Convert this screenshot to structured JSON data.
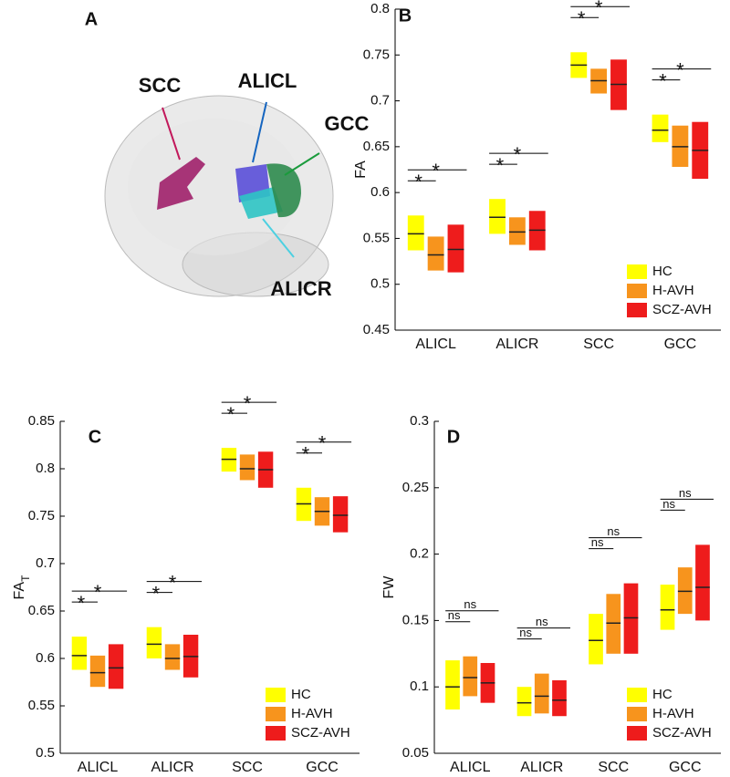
{
  "brain_panel": {
    "letter": "A",
    "labels": [
      "SCC",
      "ALICL",
      "GCC",
      "ALICR"
    ]
  },
  "chart_data": [
    {
      "type": "box",
      "panel_label": "B",
      "y_label": "FA",
      "categories": [
        "ALICL",
        "ALICR",
        "SCC",
        "GCC"
      ],
      "ylim": [
        0.45,
        0.8
      ],
      "yticks": [
        0.45,
        0.5,
        0.55,
        0.6,
        0.65,
        0.7,
        0.75,
        0.8
      ],
      "legend": "lower right",
      "series": [
        {
          "name": "HC",
          "color": "#ffff00",
          "values": [
            0.555,
            0.573,
            0.739,
            0.668
          ],
          "lower": [
            0.537,
            0.555,
            0.725,
            0.655
          ],
          "upper": [
            0.575,
            0.593,
            0.753,
            0.685
          ]
        },
        {
          "name": "H-AVH",
          "color": "#f7941d",
          "values": [
            0.532,
            0.557,
            0.722,
            0.65
          ],
          "lower": [
            0.515,
            0.543,
            0.708,
            0.628
          ],
          "upper": [
            0.552,
            0.573,
            0.735,
            0.673
          ]
        },
        {
          "name": "SCZ-AVH",
          "color": "#ee1c1c",
          "values": [
            0.538,
            0.559,
            0.718,
            0.646
          ],
          "lower": [
            0.513,
            0.537,
            0.69,
            0.615
          ],
          "upper": [
            0.565,
            0.58,
            0.745,
            0.677
          ]
        }
      ],
      "significance": [
        [
          "*",
          "*"
        ],
        [
          "*",
          "*"
        ],
        [
          "*",
          "*"
        ],
        [
          "*",
          "*"
        ]
      ]
    },
    {
      "type": "box",
      "panel_label": "C",
      "y_label": "FA",
      "y_label_sub": "T",
      "categories": [
        "ALICL",
        "ALICR",
        "SCC",
        "GCC"
      ],
      "ylim": [
        0.5,
        0.85
      ],
      "yticks": [
        0.5,
        0.55,
        0.6,
        0.65,
        0.7,
        0.75,
        0.8,
        0.85
      ],
      "legend": "lower right",
      "series": [
        {
          "name": "HC",
          "color": "#ffff00",
          "values": [
            0.603,
            0.615,
            0.81,
            0.763
          ],
          "lower": [
            0.588,
            0.6,
            0.797,
            0.745
          ],
          "upper": [
            0.623,
            0.633,
            0.822,
            0.78
          ]
        },
        {
          "name": "H-AVH",
          "color": "#f7941d",
          "values": [
            0.585,
            0.6,
            0.8,
            0.755
          ],
          "lower": [
            0.57,
            0.588,
            0.788,
            0.74
          ],
          "upper": [
            0.603,
            0.615,
            0.815,
            0.77
          ]
        },
        {
          "name": "SCZ-AVH",
          "color": "#ee1c1c",
          "values": [
            0.59,
            0.602,
            0.799,
            0.751
          ],
          "lower": [
            0.568,
            0.58,
            0.78,
            0.733
          ],
          "upper": [
            0.615,
            0.625,
            0.818,
            0.771
          ]
        }
      ],
      "significance": [
        [
          "*",
          "*"
        ],
        [
          "*",
          "*"
        ],
        [
          "*",
          "*"
        ],
        [
          "*",
          "*"
        ]
      ]
    },
    {
      "type": "box",
      "panel_label": "D",
      "y_label": "FW",
      "categories": [
        "ALICL",
        "ALICR",
        "SCC",
        "GCC"
      ],
      "ylim": [
        0.05,
        0.3
      ],
      "yticks": [
        0.05,
        0.1,
        0.15,
        0.2,
        0.25,
        0.3
      ],
      "legend": "lower right",
      "series": [
        {
          "name": "HC",
          "color": "#ffff00",
          "values": [
            0.1,
            0.088,
            0.135,
            0.158
          ],
          "lower": [
            0.083,
            0.078,
            0.117,
            0.143
          ],
          "upper": [
            0.12,
            0.1,
            0.155,
            0.177
          ]
        },
        {
          "name": "H-AVH",
          "color": "#f7941d",
          "values": [
            0.107,
            0.093,
            0.148,
            0.172
          ],
          "lower": [
            0.093,
            0.08,
            0.125,
            0.155
          ],
          "upper": [
            0.123,
            0.11,
            0.17,
            0.19
          ]
        },
        {
          "name": "SCZ-AVH",
          "color": "#ee1c1c",
          "values": [
            0.103,
            0.09,
            0.152,
            0.175
          ],
          "lower": [
            0.088,
            0.078,
            0.125,
            0.15
          ],
          "upper": [
            0.118,
            0.105,
            0.178,
            0.207
          ]
        }
      ],
      "significance": [
        [
          "ns",
          "ns"
        ],
        [
          "ns",
          "ns"
        ],
        [
          "ns",
          "ns"
        ],
        [
          "ns",
          "ns"
        ]
      ]
    }
  ]
}
